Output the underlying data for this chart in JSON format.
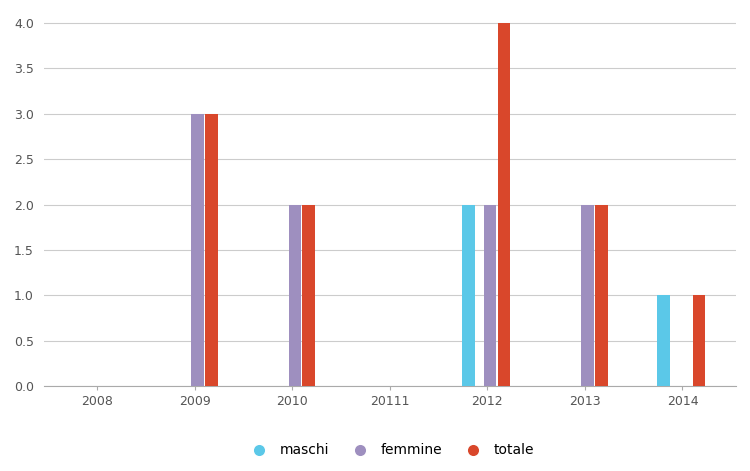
{
  "categories": [
    "2008",
    "2009",
    "2010",
    "20111",
    "2012",
    "2013",
    "2014"
  ],
  "series": {
    "maschi": [
      0,
      0,
      0,
      0,
      2,
      0,
      1
    ],
    "femmine": [
      0,
      3,
      2,
      0,
      2,
      2,
      0
    ],
    "totale": [
      0,
      3,
      2,
      0,
      4,
      2,
      1
    ]
  },
  "colors": {
    "maschi": "#5BC8E8",
    "femmine": "#9E8FBF",
    "totale": "#D9472B"
  },
  "ylim": [
    0,
    4.1
  ],
  "yticks": [
    0,
    0.5,
    1,
    1.5,
    2,
    2.5,
    3,
    3.5,
    4
  ],
  "bar_width": 0.13,
  "background_color": "#ffffff",
  "grid_color": "#cccccc",
  "legend_labels": [
    "maschi",
    "femmine",
    "totale"
  ],
  "tick_fontsize": 9,
  "legend_fontsize": 10
}
